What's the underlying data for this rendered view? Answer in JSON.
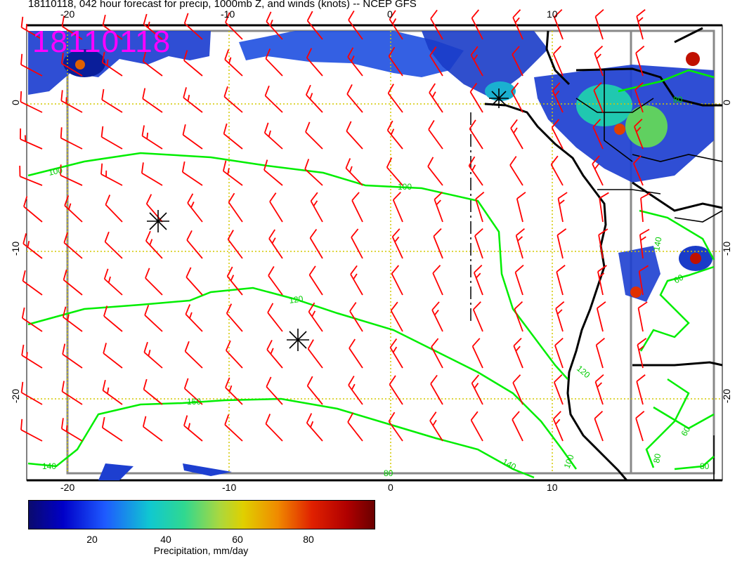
{
  "title": "18110118, 042 hour forecast for precip, 1000mb Z, and winds (knots) -- NCEP GFS",
  "stamp": "18110118",
  "axes": {
    "lon_ticks_top": [
      "-20",
      "-10",
      "0",
      "10"
    ],
    "lon_ticks_bottom": [
      "-20",
      "-10",
      "0",
      "10"
    ],
    "lat_ticks_left": [
      "0",
      "-10",
      "-20"
    ],
    "lat_ticks_right": [
      "0",
      "-10",
      "-20"
    ]
  },
  "contour_labels": [
    "100",
    "100",
    "120",
    "140",
    "140",
    "160",
    "120",
    "80",
    "60",
    "60",
    "80",
    "80",
    "100",
    "140",
    "80"
  ],
  "colorbar": {
    "ticks": [
      "20",
      "40",
      "60",
      "80"
    ],
    "label": "Precipitation, mm/day"
  },
  "colors": {
    "wind_barb": "#ff0000",
    "contour": "#00ee00",
    "coastline": "#000000",
    "grid": "#d4c800",
    "stamp": "#ff00ff"
  }
}
